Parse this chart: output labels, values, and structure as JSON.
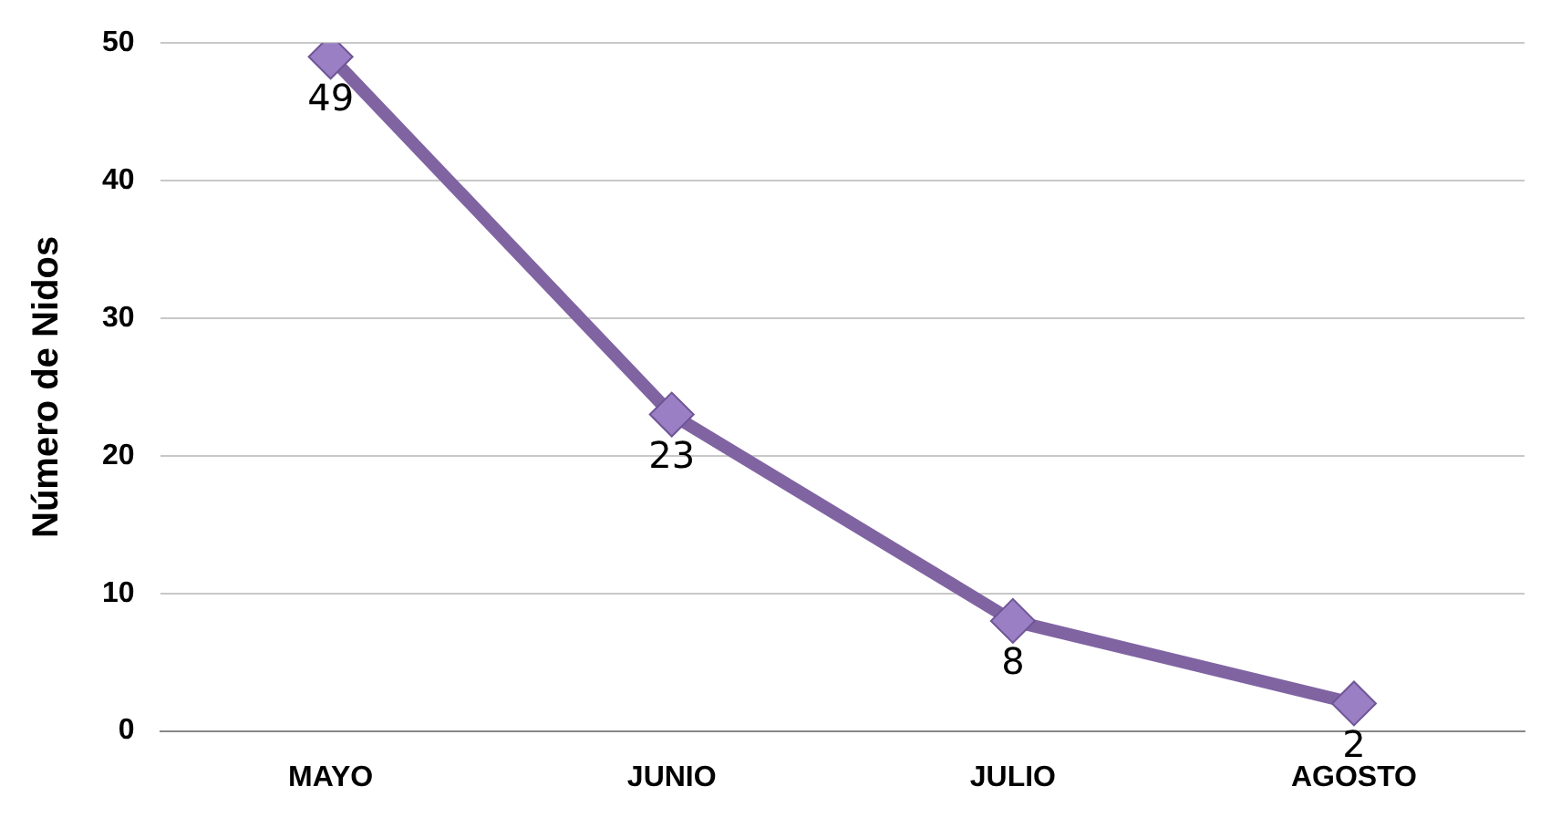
{
  "chart_data": {
    "type": "line",
    "ylabel": "Número de Nidos",
    "categories": [
      "MAYO",
      "JUNIO",
      "JULIO",
      "AGOSTO"
    ],
    "series": [
      {
        "color": "#8064a2",
        "values": [
          49,
          23,
          8,
          2
        ]
      }
    ],
    "ylim": [
      0,
      50
    ],
    "yticks": [
      0,
      10,
      20,
      30,
      40,
      50
    ],
    "grid": "y",
    "legend": false,
    "marker": "diamond",
    "line_style": "solid",
    "data_labels": true
  }
}
